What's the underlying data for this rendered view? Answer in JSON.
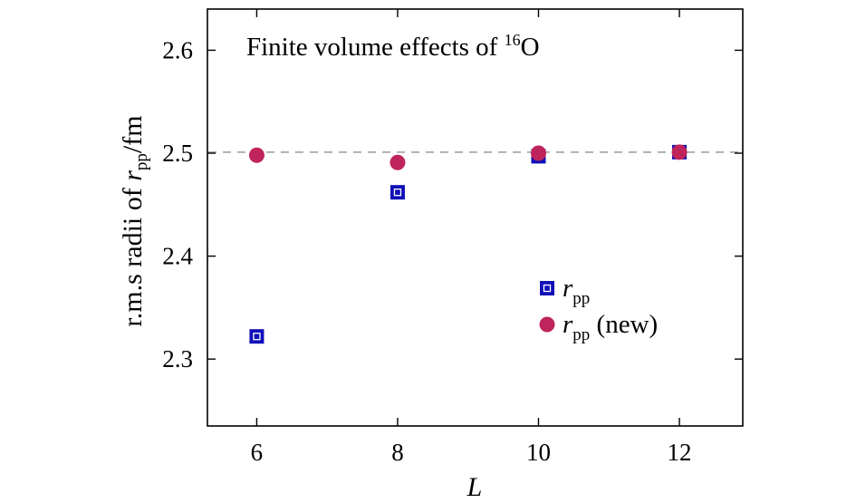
{
  "chart_data": {
    "type": "scatter",
    "title": {
      "main": "Finite volume effects of ",
      "superscript": "16",
      "element": "O"
    },
    "xlabel": "L",
    "ylabel": {
      "prefix": "r.m.s radii of ",
      "var": "r",
      "sub": "pp",
      "suffix": "/fm"
    },
    "xlim": [
      5.3,
      12.9
    ],
    "ylim": [
      2.235,
      2.64
    ],
    "xticks": [
      6,
      8,
      10,
      12
    ],
    "yticks": [
      2.3,
      2.4,
      2.5,
      2.6
    ],
    "ytick_labels": [
      "2.3",
      "2.4",
      "2.5",
      "2.6"
    ],
    "grid": false,
    "reference_line": {
      "y": 2.501,
      "style": "dashed",
      "color": "#b0b0b0"
    },
    "legend_position": "right-center",
    "series": [
      {
        "name": {
          "var": "r",
          "sub": "pp",
          "suffix": ""
        },
        "marker": "square",
        "color": "#1010b8",
        "x": [
          6,
          8,
          10,
          12
        ],
        "y": [
          2.322,
          2.462,
          2.497,
          2.501
        ]
      },
      {
        "name": {
          "var": "r",
          "sub": "pp",
          "suffix": " (new)"
        },
        "marker": "circle",
        "color": "#c0245c",
        "x": [
          6,
          8,
          10,
          12
        ],
        "y": [
          2.498,
          2.491,
          2.5,
          2.501
        ]
      }
    ]
  }
}
